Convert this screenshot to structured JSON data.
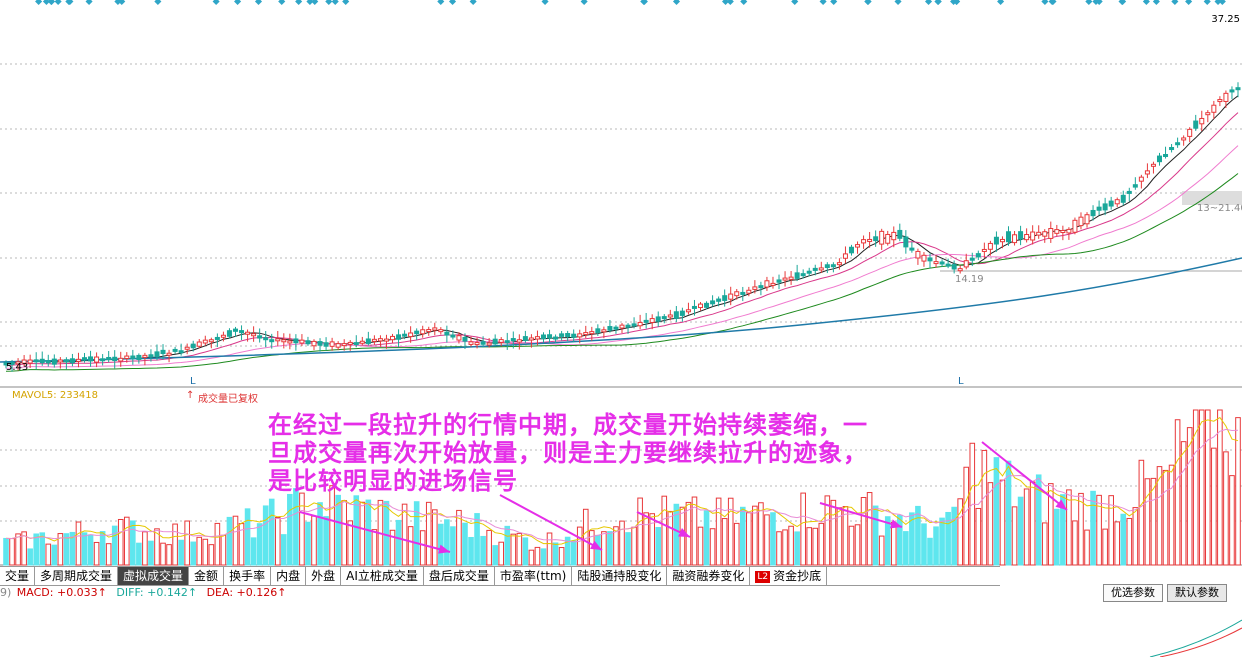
{
  "price_panel": {
    "max_price_label": "37.25",
    "min_price_label": "5.43",
    "marker_mid_label": "14.19",
    "marker_right_label": "13~21.40",
    "low_markers": [
      "L",
      "L"
    ]
  },
  "volume_panel": {
    "mavol_label": "MAVOL5: 233418",
    "restore_label": "成交量已复权"
  },
  "annotation": {
    "text": "在经过一段拉升的行情中期，成交量开始持续萎缩，一旦成交量再次开始放量，则是主力要继续拉升的迹象，是比较明显的进场信号"
  },
  "tabs": [
    {
      "label": "交量",
      "active": false
    },
    {
      "label": "多周期成交量",
      "active": false
    },
    {
      "label": "虚拟成交量",
      "active": true
    },
    {
      "label": "金额",
      "active": false
    },
    {
      "label": "换手率",
      "active": false
    },
    {
      "label": "内盘",
      "active": false
    },
    {
      "label": "外盘",
      "active": false
    },
    {
      "label": "AI立桩成交量",
      "active": false
    },
    {
      "label": "盘后成交量",
      "active": false
    },
    {
      "label": "市盈率(ttm)",
      "active": false
    },
    {
      "label": "陆股通持股变化",
      "active": false
    },
    {
      "label": "融资融券变化",
      "active": false
    },
    {
      "label": "资金抄底",
      "active": false,
      "badge": "L2"
    }
  ],
  "macd": {
    "prefix": "9)",
    "macd": "MACD: +0.033↑",
    "diff": "DIFF: +0.142↑",
    "dea": "DEA: +0.126↑"
  },
  "buttons": {
    "optimal": "优选参数",
    "default": "默认参数"
  },
  "colors": {
    "up": "#e8383a",
    "down": "#1aa79a",
    "vol_down": "#5ee6ee",
    "annot": "#e52ee8",
    "ma5": "#222222",
    "ma10": "#d9388a",
    "ma20": "#f07ccf",
    "ma30": "#1e8a1e",
    "ma60": "#1f7aa8",
    "diamond": "#30a6c8"
  },
  "chart_data": {
    "type": "candlestick",
    "y_range": [
      5.43,
      37.25
    ],
    "price_start": 5.43,
    "price_end": 37.25,
    "volume_ma_label": "MAVOL5",
    "volume_ma_value": 233418
  }
}
